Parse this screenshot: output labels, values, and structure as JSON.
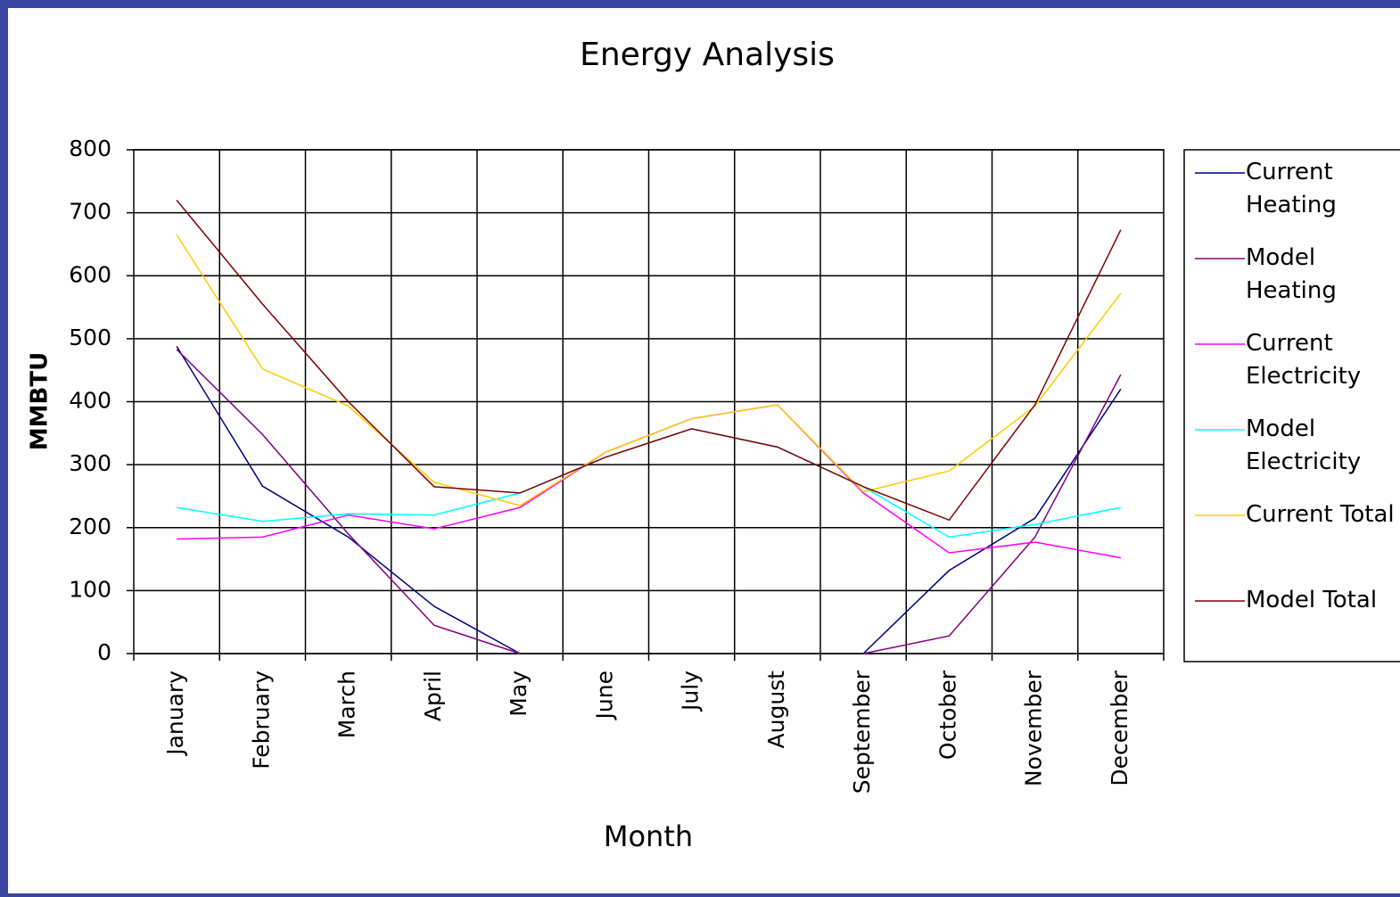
{
  "chart_data": {
    "type": "line",
    "title": "Energy Analysis",
    "x_label": "Month",
    "y_label": "MMBTU",
    "categories": [
      "January",
      "February",
      "March",
      "April",
      "May",
      "June",
      "July",
      "August",
      "September",
      "October",
      "November",
      "December"
    ],
    "series": [
      {
        "name": "Current Heating",
        "color": "#000080",
        "values": [
          488,
          266,
          185,
          75,
          0,
          null,
          null,
          null,
          0,
          132,
          215,
          420
        ]
      },
      {
        "name": "Model Heating",
        "color": "#800080",
        "values": [
          483,
          348,
          190,
          45,
          0,
          null,
          null,
          null,
          0,
          28,
          185,
          443
        ]
      },
      {
        "name": "Current Electricity",
        "color": "#ff00ff",
        "values": [
          182,
          185,
          220,
          198,
          232,
          320,
          373,
          395,
          255,
          160,
          177,
          152
        ]
      },
      {
        "name": "Model Electricity",
        "color": "#00ffff",
        "values": [
          232,
          210,
          222,
          220,
          255,
          312,
          357,
          328,
          265,
          185,
          205,
          232
        ]
      },
      {
        "name": "Current Total",
        "color": "#ffcc00",
        "values": [
          665,
          452,
          393,
          272,
          235,
          320,
          373,
          395,
          257,
          290,
          393,
          572
        ]
      },
      {
        "name": "Model Total",
        "color": "#800000",
        "values": [
          720,
          555,
          400,
          265,
          255,
          312,
          357,
          328,
          265,
          212,
          395,
          673
        ]
      }
    ],
    "ylim": [
      0,
      800
    ],
    "yticks": [
      0,
      100,
      200,
      300,
      400,
      500,
      600,
      700,
      800
    ],
    "grid": true,
    "legend": "right"
  }
}
